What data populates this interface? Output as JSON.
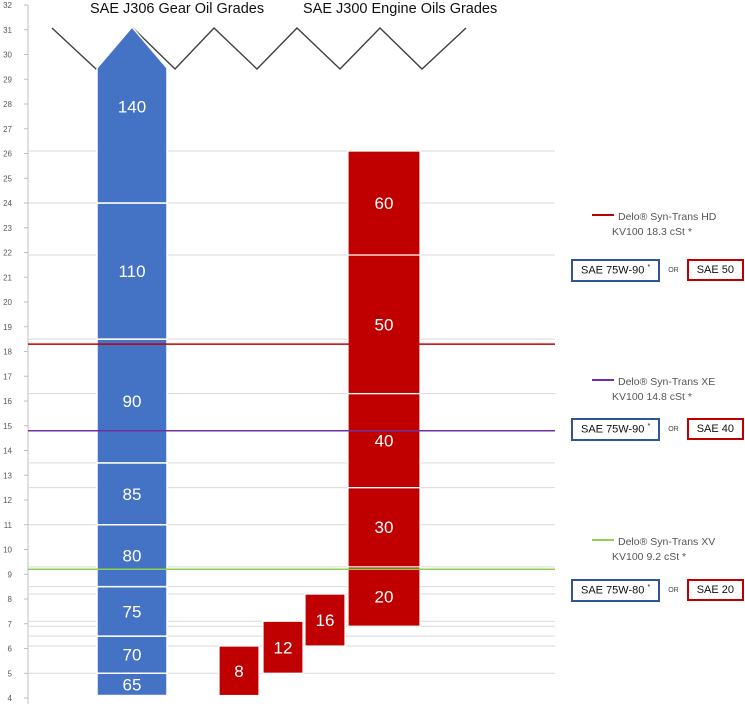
{
  "header": {
    "gear_title": "SAE J306 Gear Oil Grades",
    "engine_title": "SAE J300  Engine Oils Grades"
  },
  "chart_data": {
    "type": "bar",
    "title": "",
    "ylabel": "",
    "xlabel": "",
    "ylim": [
      4,
      32
    ],
    "yticks": [
      4,
      5,
      6,
      7,
      8,
      9,
      10,
      11,
      12,
      13,
      14,
      15,
      16,
      17,
      18,
      19,
      20,
      21,
      22,
      23,
      24,
      25,
      26,
      27,
      28,
      29,
      30,
      31,
      32
    ],
    "grid": true,
    "series": [
      {
        "name": "SAE J306 Gear Oil Grades",
        "color": "#4472c4",
        "segments": [
          {
            "label": "65",
            "min": 4.1,
            "max": 5.0
          },
          {
            "label": "70",
            "min": 5.0,
            "max": 6.5
          },
          {
            "label": "75",
            "min": 6.5,
            "max": 8.5
          },
          {
            "label": "80",
            "min": 8.5,
            "max": 11.0
          },
          {
            "label": "85",
            "min": 11.0,
            "max": 13.5
          },
          {
            "label": "90",
            "min": 13.5,
            "max": 18.5
          },
          {
            "label": "110",
            "min": 18.5,
            "max": 24.0
          },
          {
            "label": "140",
            "min": 24.0,
            "max": 31.0
          }
        ]
      },
      {
        "name": "SAE J300  Engine Oils Grades",
        "color": "#c00000",
        "segments": [
          {
            "label": "8",
            "min": 4.1,
            "max": 6.1
          },
          {
            "label": "12",
            "min": 5.0,
            "max": 7.1
          },
          {
            "label": "16",
            "min": 6.1,
            "max": 8.2
          },
          {
            "label": "20",
            "min": 6.9,
            "max": 9.3
          },
          {
            "label": "30",
            "min": 9.3,
            "max": 12.5
          },
          {
            "label": "40",
            "min": 12.5,
            "max": 16.3
          },
          {
            "label": "50",
            "min": 16.3,
            "max": 21.9
          },
          {
            "label": "60",
            "min": 21.9,
            "max": 26.1
          }
        ]
      }
    ],
    "reference_lines": [
      {
        "name": "Delo® Syn-Trans HD",
        "kv_label": "KV100 18.3 cSt *",
        "value": 18.3,
        "color": "#c00000",
        "gear_grade": "SAE 75W-90",
        "engine_grade": "SAE 50"
      },
      {
        "name": "Delo® Syn-Trans XE",
        "kv_label": "KV100 14.8 cSt *",
        "value": 14.8,
        "color": "#7030a0",
        "gear_grade": "SAE 75W-90",
        "engine_grade": "SAE 40"
      },
      {
        "name": "Delo® Syn-Trans XV",
        "kv_label": "KV100 9.2 cSt *",
        "value": 9.2,
        "color": "#92d050",
        "gear_grade": "SAE 75W-80",
        "engine_grade": "SAE 20"
      }
    ],
    "extra_gridlines": [
      8.5,
      6.9,
      6.5
    ]
  },
  "labels": {
    "or_text": "OR",
    "asterisk": "*"
  }
}
